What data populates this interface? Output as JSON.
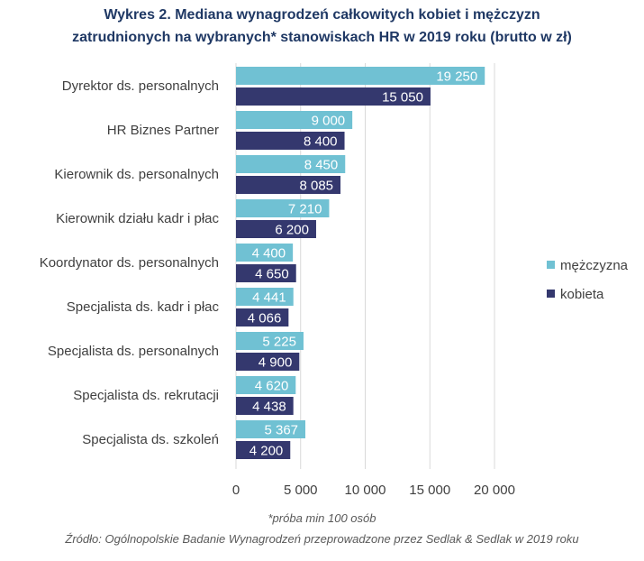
{
  "colors": {
    "men": "#70c1d3",
    "women": "#34386e",
    "title": "#1f3864",
    "text": "#404040",
    "grid": "#d9d9d9"
  },
  "chart_data": {
    "type": "bar",
    "orientation": "horizontal",
    "title_line1": "Wykres 2. Mediana wynagrodzeń całkowitych kobiet i mężczyzn",
    "title_line2": "zatrudnionych na wybranych* stanowiskach HR w 2019 roku (brutto w zł)",
    "categories": [
      "Dyrektor ds. personalnych",
      "HR Biznes Partner",
      "Kierownik ds. personalnych",
      "Kierownik działu kadr i płac",
      "Koordynator ds. personalnych",
      "Specjalista ds. kadr i płac",
      "Specjalista ds. personalnych",
      "Specjalista ds. rekrutacji",
      "Specjalista ds. szkoleń"
    ],
    "series": [
      {
        "name": "mężczyzna",
        "values": [
          19250,
          9000,
          8450,
          7210,
          4400,
          4441,
          5225,
          4620,
          5367
        ],
        "labels": [
          "19 250",
          "9 000",
          "8 450",
          "7 210",
          "4 400",
          "4 441",
          "5 225",
          "4 620",
          "5 367"
        ]
      },
      {
        "name": "kobieta",
        "values": [
          15050,
          8400,
          8085,
          6200,
          4650,
          4066,
          4900,
          4438,
          4200
        ],
        "labels": [
          "15 050",
          "8 400",
          "8 085",
          "6 200",
          "4 650",
          "4 066",
          "4 900",
          "4 438",
          "4 200"
        ]
      }
    ],
    "xlim": [
      0,
      20000
    ],
    "xticks": [
      0,
      5000,
      10000,
      15000,
      20000
    ],
    "xtick_labels": [
      "0",
      "5 000",
      "10 000",
      "15 000",
      "20 000"
    ],
    "grid": true,
    "legend": "right",
    "footnote": "*próba min 100 osób",
    "source": "Źródło: Ogólnopolskie Badanie Wynagrodzeń przeprowadzone przez Sedlak & Sedlak w 2019 roku"
  }
}
